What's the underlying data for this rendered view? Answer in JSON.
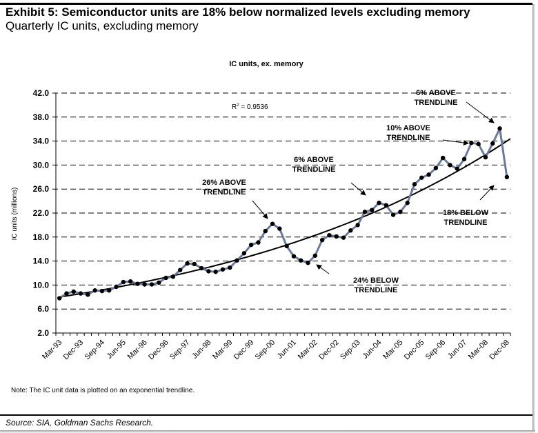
{
  "header": {
    "title": "Exhibit 5:  Semiconductor units are 18% below normalized levels excluding memory",
    "subtitle": "Quarterly IC units, excluding memory"
  },
  "footer": {
    "note": "Note: The IC unit data is plotted on an exponential trendline.",
    "source": "Source: SIA, Goldman Sachs Research."
  },
  "chart_data": {
    "type": "line",
    "title": "IC units, ex. memory",
    "xlabel": "",
    "ylabel": "IC units (millions)",
    "ylim": [
      2,
      42
    ],
    "yticks": [
      "42.0",
      "38.0",
      "34.0",
      "30.0",
      "26.0",
      "22.0",
      "18.0",
      "14.0",
      "10.0",
      "6.0",
      "2.0"
    ],
    "grid": "horizontal dashed",
    "legend": "none",
    "line_color": "#6b7a99",
    "marker_color": "#000000",
    "trend_color": "#000000",
    "r_squared_label": "R",
    "r_squared_sup": "2",
    "r_squared_value": " = 0.9536",
    "trendline": {
      "type": "exponential",
      "start": 8.0,
      "end": 34.0
    },
    "xtick_labels": [
      "Mar-93",
      "Dec-93",
      "Sep-94",
      "Jun-95",
      "Mar-96",
      "Dec-96",
      "Sep-97",
      "Jun-98",
      "Mar-99",
      "Dec-99",
      "Sep-00",
      "Jun-01",
      "Mar-02",
      "Dec-02",
      "Sep-03",
      "Jun-04",
      "Mar-05",
      "Dec-05",
      "Sep-06",
      "Jun-07",
      "Mar-08",
      "Dec-08"
    ],
    "categories": [
      "Mar-93",
      "Jun-93",
      "Sep-93",
      "Dec-93",
      "Mar-94",
      "Jun-94",
      "Sep-94",
      "Dec-94",
      "Mar-95",
      "Jun-95",
      "Sep-95",
      "Dec-95",
      "Mar-96",
      "Jun-96",
      "Sep-96",
      "Dec-96",
      "Mar-97",
      "Jun-97",
      "Sep-97",
      "Dec-97",
      "Mar-98",
      "Jun-98",
      "Sep-98",
      "Dec-98",
      "Mar-99",
      "Jun-99",
      "Sep-99",
      "Dec-99",
      "Mar-00",
      "Jun-00",
      "Sep-00",
      "Dec-00",
      "Mar-01",
      "Jun-01",
      "Sep-01",
      "Dec-01",
      "Mar-02",
      "Jun-02",
      "Sep-02",
      "Dec-02",
      "Mar-03",
      "Jun-03",
      "Sep-03",
      "Dec-03",
      "Mar-04",
      "Jun-04",
      "Sep-04",
      "Dec-04",
      "Mar-05",
      "Jun-05",
      "Sep-05",
      "Dec-05",
      "Mar-06",
      "Jun-06",
      "Sep-06",
      "Dec-06",
      "Mar-07",
      "Jun-07",
      "Sep-07",
      "Dec-07",
      "Mar-08",
      "Jun-08",
      "Sep-08",
      "Dec-08"
    ],
    "values": [
      7.8,
      8.6,
      8.9,
      8.6,
      8.4,
      9.1,
      9.0,
      9.1,
      9.7,
      10.5,
      10.6,
      10.2,
      10.1,
      10.1,
      10.4,
      11.2,
      11.4,
      12.5,
      13.6,
      13.5,
      12.8,
      12.3,
      12.2,
      12.6,
      12.9,
      14.1,
      15.3,
      16.7,
      17.1,
      19.0,
      20.2,
      19.4,
      16.5,
      14.8,
      14.1,
      13.7,
      14.9,
      17.5,
      18.3,
      18.1,
      17.9,
      19.1,
      20.0,
      22.2,
      22.5,
      23.7,
      23.3,
      21.7,
      22.2,
      23.7,
      26.8,
      27.9,
      28.4,
      29.5,
      31.2,
      30.0,
      29.4,
      31.0,
      33.7,
      33.5,
      31.3,
      33.6,
      36.1,
      28.0
    ],
    "annotations": [
      {
        "line1": "26% ABOVE",
        "line2": "TRENDLINE",
        "points_to": "Sep-00"
      },
      {
        "line1": "6% ABOVE",
        "line2": "TRENDLINE",
        "points_to": "Dec-03"
      },
      {
        "line1": "24% BELOW",
        "line2": "TRENDLINE",
        "points_to": "Dec-01"
      },
      {
        "line1": "10% ABOVE",
        "line2": "TRENDLINE",
        "points_to": "Dec-07"
      },
      {
        "line1": "6% ABOVE",
        "line2": "TRENDLINE",
        "points_to": "Sep-08"
      },
      {
        "line1": "18% BELOW",
        "line2": "TRENDLINE",
        "points_to": "Dec-08"
      }
    ]
  }
}
